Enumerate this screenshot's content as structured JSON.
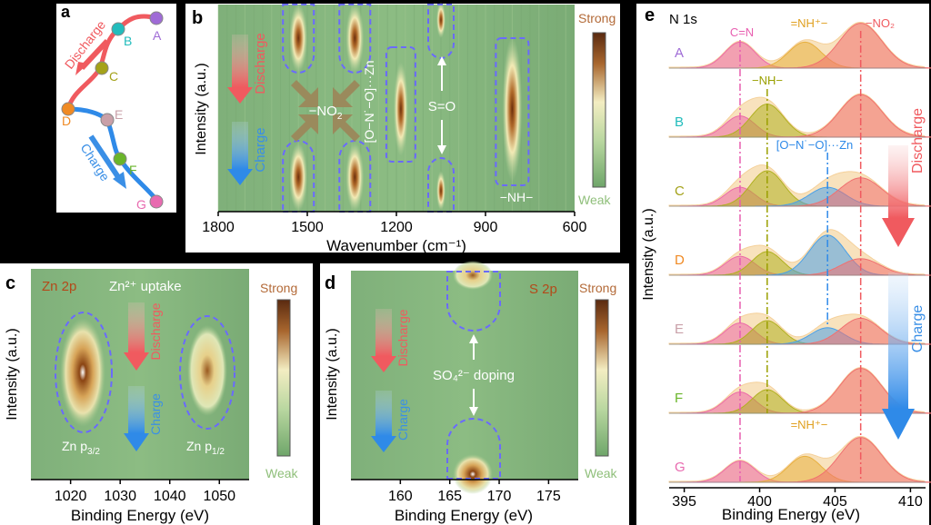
{
  "colors": {
    "discharge": "#f05a5f",
    "charge": "#3a8fe6",
    "ellipse": "#6a6aff",
    "strong": "#b36a38",
    "weak": "#8fbf7a"
  },
  "panel_a": {
    "label": "a",
    "discharge": "Discharge",
    "charge": "Charge",
    "points": [
      {
        "label": "A",
        "color": "#9f6bd6"
      },
      {
        "label": "B",
        "color": "#22bcbc"
      },
      {
        "label": "C",
        "color": "#a4a21a"
      },
      {
        "label": "D",
        "color": "#f08a24"
      },
      {
        "label": "E",
        "color": "#c9a0a8"
      },
      {
        "label": "F",
        "color": "#6ab52a"
      },
      {
        "label": "G",
        "color": "#e86bb0"
      }
    ]
  },
  "panel_b": {
    "label": "b",
    "ylabel": "Intensity (a.u.)",
    "xlabel": "Wavenumber (cm⁻¹)",
    "xticks": [
      "1800",
      "1500",
      "1200",
      "900",
      "600"
    ],
    "discharge": "Discharge",
    "charge": "Charge",
    "no2": "−NO",
    "no2_sub": "2",
    "zn_complex": "[O−N˙−O]···Zn",
    "so": "S=O",
    "nh": "−NH−",
    "strong": "Strong",
    "weak": "Weak"
  },
  "panel_c": {
    "label": "c",
    "title": "Zn 2p",
    "uptake": "Zn²⁺ uptake",
    "discharge": "Discharge",
    "charge": "Charge",
    "p32": "Zn p",
    "p32_sub": "3/2",
    "p12": "Zn p",
    "p12_sub": "1/2",
    "ylabel": "Intensity (a.u.)",
    "xlabel": "Binding Energy (eV)",
    "xticks": [
      "1020",
      "1030",
      "1040",
      "1050"
    ],
    "strong": "Strong",
    "weak": "Weak"
  },
  "panel_d": {
    "label": "d",
    "title": "S 2p",
    "discharge": "Discharge",
    "charge": "Charge",
    "doping": "SO₄²⁻ doping",
    "ylabel": "Intensity (a.u.)",
    "xlabel": "Binding Energy (eV)",
    "xticks": [
      "160",
      "165",
      "170",
      "175"
    ],
    "strong": "Strong",
    "weak": "Weak"
  },
  "panel_e": {
    "label": "e",
    "title": "N 1s",
    "ylabel": "Intensity (a.u.)",
    "xlabel": "Binding Energy (eV)",
    "xticks": [
      "395",
      "400",
      "405",
      "410"
    ],
    "discharge": "Discharge",
    "charge": "Charge",
    "cn": "C=N",
    "nh_plus": "=NH⁺−",
    "no2": "−NO₂",
    "nh": "−NH−",
    "zn_complex": "[O−N˙−O]···Zn",
    "nh_plus_g": "=NH⁺−"
  },
  "chart_data": [
    {
      "type": "heatmap",
      "panel": "b",
      "xlabel": "Wavenumber (cm⁻¹)",
      "ylabel": "Intensity (a.u.)",
      "xlim": [
        1800,
        600
      ],
      "bands": [
        {
          "name": "−NO₂",
          "x": 1530
        },
        {
          "name": "−NO₂",
          "x": 1340
        },
        {
          "name": "[O−N˙−O]···Zn",
          "x": 1185
        },
        {
          "name": "S=O",
          "x": 1050
        },
        {
          "name": "−NH−",
          "x": 810
        }
      ]
    },
    {
      "type": "heatmap",
      "panel": "c",
      "xlabel": "Binding Energy (eV)",
      "xlim": [
        1012,
        1056
      ],
      "peaks": [
        {
          "name": "Zn p3/2",
          "x": 1022
        },
        {
          "name": "Zn p1/2",
          "x": 1045
        }
      ]
    },
    {
      "type": "heatmap",
      "panel": "d",
      "xlabel": "Binding Energy (eV)",
      "xlim": [
        155,
        178
      ],
      "peaks": [
        {
          "name": "SO₄²⁻",
          "x": 168
        }
      ]
    },
    {
      "type": "line",
      "panel": "e",
      "xlabel": "Binding Energy (eV)",
      "ylabel": "Intensity (a.u.)",
      "xlim": [
        394,
        411
      ],
      "series": [
        {
          "name": "A",
          "components": [
            {
              "label": "C=N",
              "center": 398.7,
              "height": 0.55,
              "width": 1.0
            },
            {
              "label": "=NH⁺−",
              "center": 403.0,
              "height": 0.55,
              "width": 1.1
            },
            {
              "label": "−NO₂",
              "center": 406.7,
              "height": 0.95,
              "width": 1.4
            }
          ]
        },
        {
          "name": "B",
          "components": [
            {
              "label": "C=N",
              "center": 398.7,
              "height": 0.45,
              "width": 1.0
            },
            {
              "label": "−NH−",
              "center": 400.5,
              "height": 0.7,
              "width": 1.1
            },
            {
              "label": "−NO₂",
              "center": 406.7,
              "height": 0.9,
              "width": 1.4
            }
          ]
        },
        {
          "name": "C",
          "components": [
            {
              "label": "C=N",
              "center": 398.7,
              "height": 0.4,
              "width": 1.0
            },
            {
              "label": "−NH−",
              "center": 400.5,
              "height": 0.75,
              "width": 1.1
            },
            {
              "label": "[O−N˙−O]···Zn",
              "center": 404.5,
              "height": 0.4,
              "width": 1.2
            },
            {
              "label": "−NO₂",
              "center": 406.7,
              "height": 0.6,
              "width": 1.4
            }
          ]
        },
        {
          "name": "D",
          "components": [
            {
              "label": "C=N",
              "center": 398.7,
              "height": 0.4,
              "width": 1.0
            },
            {
              "label": "−NH−",
              "center": 400.5,
              "height": 0.5,
              "width": 1.0
            },
            {
              "label": "[O−N˙−O]···Zn",
              "center": 404.5,
              "height": 0.85,
              "width": 1.2
            },
            {
              "label": "−NO₂",
              "center": 406.7,
              "height": 0.35,
              "width": 1.3
            }
          ]
        },
        {
          "name": "E",
          "components": [
            {
              "label": "C=N",
              "center": 398.7,
              "height": 0.45,
              "width": 1.0
            },
            {
              "label": "−NH−",
              "center": 400.5,
              "height": 0.5,
              "width": 1.0
            },
            {
              "label": "[O−N˙−O]···Zn",
              "center": 404.5,
              "height": 0.35,
              "width": 1.1
            },
            {
              "label": "−NO₂",
              "center": 406.7,
              "height": 0.55,
              "width": 1.3
            }
          ]
        },
        {
          "name": "F",
          "components": [
            {
              "label": "C=N",
              "center": 398.7,
              "height": 0.45,
              "width": 1.0
            },
            {
              "label": "−NH−",
              "center": 400.5,
              "height": 0.5,
              "width": 1.0
            },
            {
              "label": "−NO₂",
              "center": 406.7,
              "height": 0.95,
              "width": 1.4
            }
          ]
        },
        {
          "name": "G",
          "components": [
            {
              "label": "C=N",
              "center": 398.7,
              "height": 0.45,
              "width": 1.0
            },
            {
              "label": "=NH⁺−",
              "center": 403.0,
              "height": 0.55,
              "width": 1.1
            },
            {
              "label": "−NO₂",
              "center": 406.7,
              "height": 0.95,
              "width": 1.4
            }
          ]
        }
      ]
    }
  ]
}
